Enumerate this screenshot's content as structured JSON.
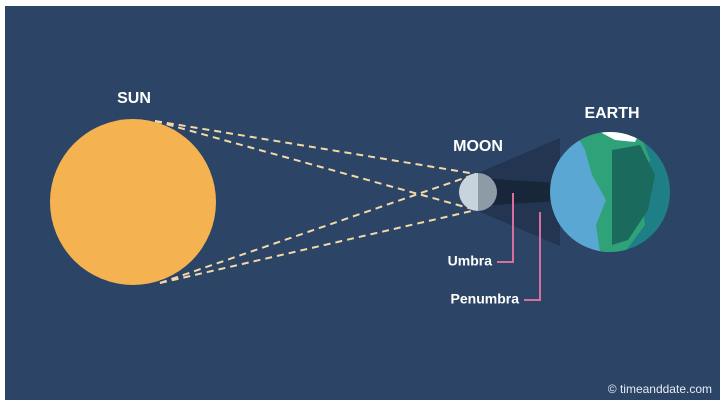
{
  "labels": {
    "sun": "SUN",
    "moon": "MOON",
    "earth": "EARTH",
    "umbra": "Umbra",
    "penumbra": "Penumbra"
  },
  "credit": "© timeanddate.com"
}
